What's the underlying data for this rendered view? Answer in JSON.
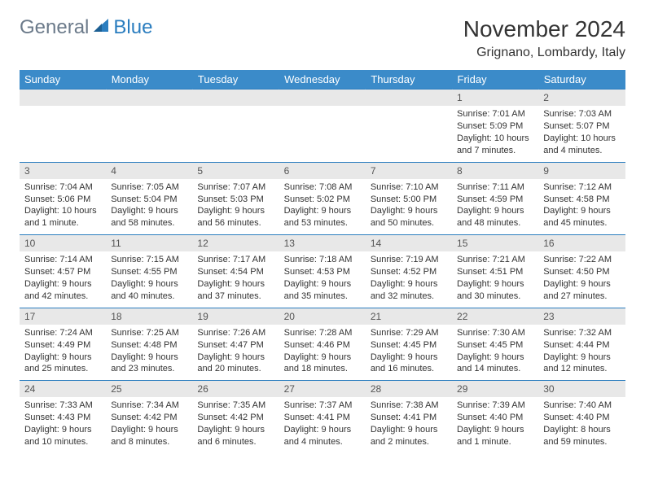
{
  "brand": {
    "general": "General",
    "blue": "Blue"
  },
  "title": "November 2024",
  "location": "Grignano, Lombardy, Italy",
  "colors": {
    "header_bg": "#3b8bc9",
    "header_text": "#ffffff",
    "row_border": "#2a7dbf",
    "daynum_bg": "#e8e8e8",
    "body_text": "#333333",
    "logo_gray": "#6b7a8a",
    "logo_blue": "#2a7dbf"
  },
  "table": {
    "type": "calendar",
    "columns": [
      "Sunday",
      "Monday",
      "Tuesday",
      "Wednesday",
      "Thursday",
      "Friday",
      "Saturday"
    ],
    "weeks": [
      [
        null,
        null,
        null,
        null,
        null,
        {
          "n": "1",
          "sr": "Sunrise: 7:01 AM",
          "ss": "Sunset: 5:09 PM",
          "dl": "Daylight: 10 hours and 7 minutes."
        },
        {
          "n": "2",
          "sr": "Sunrise: 7:03 AM",
          "ss": "Sunset: 5:07 PM",
          "dl": "Daylight: 10 hours and 4 minutes."
        }
      ],
      [
        {
          "n": "3",
          "sr": "Sunrise: 7:04 AM",
          "ss": "Sunset: 5:06 PM",
          "dl": "Daylight: 10 hours and 1 minute."
        },
        {
          "n": "4",
          "sr": "Sunrise: 7:05 AM",
          "ss": "Sunset: 5:04 PM",
          "dl": "Daylight: 9 hours and 58 minutes."
        },
        {
          "n": "5",
          "sr": "Sunrise: 7:07 AM",
          "ss": "Sunset: 5:03 PM",
          "dl": "Daylight: 9 hours and 56 minutes."
        },
        {
          "n": "6",
          "sr": "Sunrise: 7:08 AM",
          "ss": "Sunset: 5:02 PM",
          "dl": "Daylight: 9 hours and 53 minutes."
        },
        {
          "n": "7",
          "sr": "Sunrise: 7:10 AM",
          "ss": "Sunset: 5:00 PM",
          "dl": "Daylight: 9 hours and 50 minutes."
        },
        {
          "n": "8",
          "sr": "Sunrise: 7:11 AM",
          "ss": "Sunset: 4:59 PM",
          "dl": "Daylight: 9 hours and 48 minutes."
        },
        {
          "n": "9",
          "sr": "Sunrise: 7:12 AM",
          "ss": "Sunset: 4:58 PM",
          "dl": "Daylight: 9 hours and 45 minutes."
        }
      ],
      [
        {
          "n": "10",
          "sr": "Sunrise: 7:14 AM",
          "ss": "Sunset: 4:57 PM",
          "dl": "Daylight: 9 hours and 42 minutes."
        },
        {
          "n": "11",
          "sr": "Sunrise: 7:15 AM",
          "ss": "Sunset: 4:55 PM",
          "dl": "Daylight: 9 hours and 40 minutes."
        },
        {
          "n": "12",
          "sr": "Sunrise: 7:17 AM",
          "ss": "Sunset: 4:54 PM",
          "dl": "Daylight: 9 hours and 37 minutes."
        },
        {
          "n": "13",
          "sr": "Sunrise: 7:18 AM",
          "ss": "Sunset: 4:53 PM",
          "dl": "Daylight: 9 hours and 35 minutes."
        },
        {
          "n": "14",
          "sr": "Sunrise: 7:19 AM",
          "ss": "Sunset: 4:52 PM",
          "dl": "Daylight: 9 hours and 32 minutes."
        },
        {
          "n": "15",
          "sr": "Sunrise: 7:21 AM",
          "ss": "Sunset: 4:51 PM",
          "dl": "Daylight: 9 hours and 30 minutes."
        },
        {
          "n": "16",
          "sr": "Sunrise: 7:22 AM",
          "ss": "Sunset: 4:50 PM",
          "dl": "Daylight: 9 hours and 27 minutes."
        }
      ],
      [
        {
          "n": "17",
          "sr": "Sunrise: 7:24 AM",
          "ss": "Sunset: 4:49 PM",
          "dl": "Daylight: 9 hours and 25 minutes."
        },
        {
          "n": "18",
          "sr": "Sunrise: 7:25 AM",
          "ss": "Sunset: 4:48 PM",
          "dl": "Daylight: 9 hours and 23 minutes."
        },
        {
          "n": "19",
          "sr": "Sunrise: 7:26 AM",
          "ss": "Sunset: 4:47 PM",
          "dl": "Daylight: 9 hours and 20 minutes."
        },
        {
          "n": "20",
          "sr": "Sunrise: 7:28 AM",
          "ss": "Sunset: 4:46 PM",
          "dl": "Daylight: 9 hours and 18 minutes."
        },
        {
          "n": "21",
          "sr": "Sunrise: 7:29 AM",
          "ss": "Sunset: 4:45 PM",
          "dl": "Daylight: 9 hours and 16 minutes."
        },
        {
          "n": "22",
          "sr": "Sunrise: 7:30 AM",
          "ss": "Sunset: 4:45 PM",
          "dl": "Daylight: 9 hours and 14 minutes."
        },
        {
          "n": "23",
          "sr": "Sunrise: 7:32 AM",
          "ss": "Sunset: 4:44 PM",
          "dl": "Daylight: 9 hours and 12 minutes."
        }
      ],
      [
        {
          "n": "24",
          "sr": "Sunrise: 7:33 AM",
          "ss": "Sunset: 4:43 PM",
          "dl": "Daylight: 9 hours and 10 minutes."
        },
        {
          "n": "25",
          "sr": "Sunrise: 7:34 AM",
          "ss": "Sunset: 4:42 PM",
          "dl": "Daylight: 9 hours and 8 minutes."
        },
        {
          "n": "26",
          "sr": "Sunrise: 7:35 AM",
          "ss": "Sunset: 4:42 PM",
          "dl": "Daylight: 9 hours and 6 minutes."
        },
        {
          "n": "27",
          "sr": "Sunrise: 7:37 AM",
          "ss": "Sunset: 4:41 PM",
          "dl": "Daylight: 9 hours and 4 minutes."
        },
        {
          "n": "28",
          "sr": "Sunrise: 7:38 AM",
          "ss": "Sunset: 4:41 PM",
          "dl": "Daylight: 9 hours and 2 minutes."
        },
        {
          "n": "29",
          "sr": "Sunrise: 7:39 AM",
          "ss": "Sunset: 4:40 PM",
          "dl": "Daylight: 9 hours and 1 minute."
        },
        {
          "n": "30",
          "sr": "Sunrise: 7:40 AM",
          "ss": "Sunset: 4:40 PM",
          "dl": "Daylight: 8 hours and 59 minutes."
        }
      ]
    ]
  }
}
